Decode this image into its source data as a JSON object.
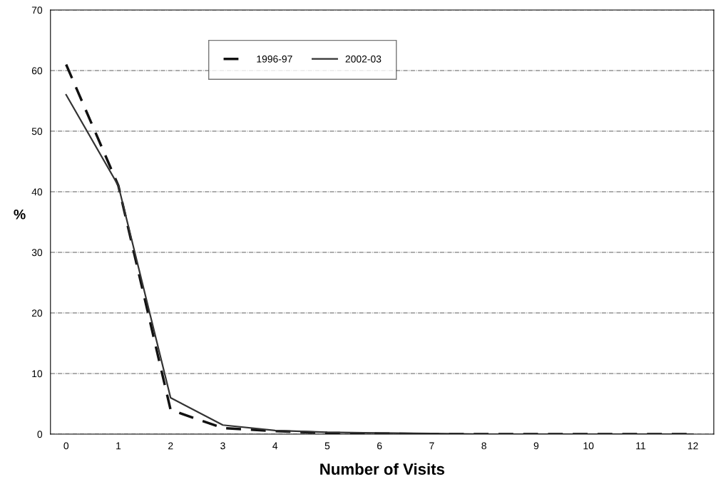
{
  "chart_data": {
    "type": "line",
    "xlabel": "Number of Visits",
    "ylabel": "%",
    "categories": [
      "0",
      "1",
      "2",
      "3",
      "4",
      "5",
      "6",
      "7",
      "8",
      "9",
      "10",
      "11",
      "12"
    ],
    "series": [
      {
        "name": "1996-97",
        "color": "#111111",
        "line_style": "dashed",
        "values": [
          61,
          41,
          4,
          1,
          0.5,
          0.2,
          0.1,
          0,
          0,
          0,
          0,
          0,
          0
        ]
      },
      {
        "name": "2002-03",
        "color": "#333333",
        "line_style": "solid",
        "values": [
          56,
          41,
          6,
          1.5,
          0.6,
          0.3,
          0.2,
          0.1,
          0,
          0,
          0,
          0,
          0
        ]
      }
    ],
    "ylim": [
      0,
      70
    ],
    "yticks": [
      0,
      10,
      20,
      30,
      40,
      50,
      60,
      70
    ],
    "grid": "y",
    "legend": "top",
    "marker": "none"
  }
}
